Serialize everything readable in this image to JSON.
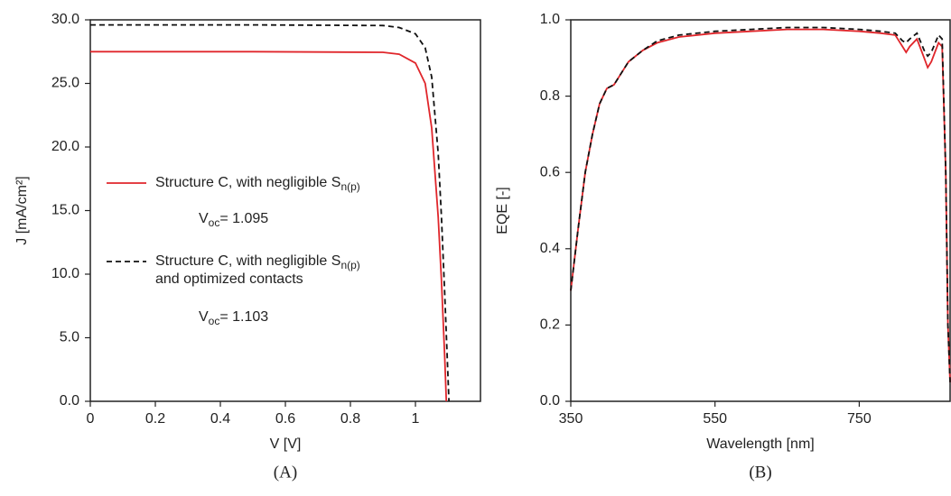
{
  "chart_data": [
    {
      "type": "line",
      "caption": "(A)",
      "x_label": "V [V]",
      "y_label": "J [mA/cm²]",
      "xlim": [
        0,
        1.2
      ],
      "ylim": [
        0,
        30
      ],
      "xticks": [
        0,
        0.2,
        0.4,
        0.6,
        0.8,
        1
      ],
      "yticks": [
        {
          "value": 0,
          "label": "0.0"
        },
        {
          "value": 5,
          "label": "5.0"
        },
        {
          "value": 10,
          "label": "10.0"
        },
        {
          "value": 15,
          "label": "15.0"
        },
        {
          "value": 20,
          "label": "20.0"
        },
        {
          "value": 25,
          "label": "25.0"
        },
        {
          "value": 30,
          "label": "30.0"
        }
      ],
      "series": [
        {
          "name": "Structure C, with negligible S",
          "name_subscript": "n(p)",
          "color": "#e0262b",
          "dashed": false,
          "annotation": {
            "text": "V",
            "subscript": "oc",
            "rest": "= 1.095"
          },
          "x": [
            0,
            0.5,
            0.9,
            0.95,
            1.0,
            1.03,
            1.05,
            1.07,
            1.08,
            1.09,
            1.095
          ],
          "values": [
            27.5,
            27.5,
            27.45,
            27.3,
            26.6,
            25.0,
            21.5,
            14.5,
            9.5,
            3.5,
            0
          ]
        },
        {
          "name": "Structure C, with negligible S",
          "name_subscript": "n(p)",
          "name_line2": "and optimized contacts",
          "color": "#111111",
          "dashed": true,
          "annotation": {
            "text": "V",
            "subscript": "oc",
            "rest": "= 1.103"
          },
          "x": [
            0,
            0.5,
            0.9,
            0.95,
            1.0,
            1.03,
            1.05,
            1.07,
            1.08,
            1.09,
            1.1,
            1.103
          ],
          "values": [
            29.6,
            29.6,
            29.55,
            29.4,
            28.9,
            27.8,
            25.5,
            19.5,
            14.5,
            8.5,
            2.0,
            0
          ]
        }
      ]
    },
    {
      "type": "line",
      "caption": "(B)",
      "x_label": "Wavelength [nm]",
      "y_label": "EQE [-]",
      "xlim": [
        350,
        876
      ],
      "ylim": [
        0,
        1
      ],
      "xticks": [
        350,
        550,
        750
      ],
      "yticks": [
        {
          "value": 0,
          "label": "0.0"
        },
        0.2,
        0.4,
        0.6,
        0.8,
        {
          "value": 1,
          "label": "1.0"
        }
      ],
      "series": [
        {
          "color": "#e0262b",
          "dashed": false,
          "x": [
            350,
            360,
            370,
            380,
            390,
            400,
            410,
            420,
            430,
            450,
            470,
            500,
            550,
            600,
            650,
            700,
            750,
            780,
            800,
            810,
            815,
            820,
            830,
            840,
            845,
            850,
            860,
            865,
            870,
            873,
            876
          ],
          "values": [
            0.29,
            0.45,
            0.6,
            0.7,
            0.78,
            0.82,
            0.83,
            0.86,
            0.89,
            0.92,
            0.94,
            0.955,
            0.965,
            0.97,
            0.975,
            0.975,
            0.97,
            0.965,
            0.96,
            0.93,
            0.915,
            0.93,
            0.95,
            0.9,
            0.875,
            0.89,
            0.94,
            0.93,
            0.6,
            0.2,
            0.05
          ]
        },
        {
          "color": "#111111",
          "dashed": true,
          "x": [
            350,
            360,
            370,
            380,
            390,
            400,
            410,
            420,
            430,
            450,
            470,
            500,
            550,
            600,
            650,
            700,
            750,
            780,
            800,
            810,
            815,
            820,
            830,
            840,
            845,
            850,
            860,
            865,
            870,
            873,
            876
          ],
          "values": [
            0.29,
            0.45,
            0.6,
            0.7,
            0.78,
            0.82,
            0.83,
            0.86,
            0.89,
            0.92,
            0.945,
            0.96,
            0.97,
            0.975,
            0.98,
            0.98,
            0.975,
            0.97,
            0.965,
            0.945,
            0.94,
            0.95,
            0.965,
            0.92,
            0.905,
            0.915,
            0.96,
            0.95,
            0.6,
            0.2,
            0.05
          ]
        }
      ]
    }
  ]
}
